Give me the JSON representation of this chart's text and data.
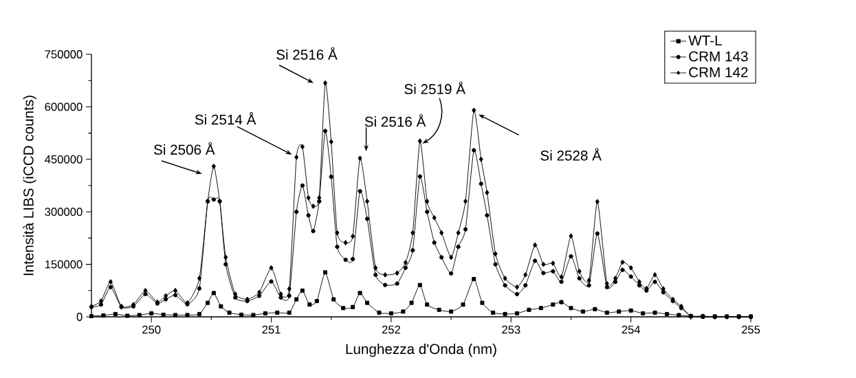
{
  "chart_data": {
    "type": "line",
    "xlabel": "Lunghezza d'Onda (nm)",
    "ylabel": "Intensità LIBS (iCCD counts)",
    "xlim": [
      249.5,
      255
    ],
    "xticks": [
      250,
      251,
      252,
      253,
      254,
      255
    ],
    "ylim": [
      0,
      750000
    ],
    "yticks": [
      0,
      150000,
      300000,
      450000,
      600000,
      750000
    ],
    "legend": "top right",
    "series": [
      {
        "name": "WT-L",
        "color": "#000000",
        "marker": "square",
        "x": [
          249.5,
          249.6,
          249.7,
          249.8,
          249.9,
          250.0,
          250.1,
          250.2,
          250.3,
          250.4,
          250.47,
          250.52,
          250.58,
          250.65,
          250.75,
          250.85,
          250.95,
          251.05,
          251.15,
          251.21,
          251.26,
          251.32,
          251.38,
          251.45,
          251.52,
          251.6,
          251.68,
          251.74,
          251.8,
          251.9,
          252.0,
          252.1,
          252.17,
          252.24,
          252.3,
          252.4,
          252.5,
          252.6,
          252.69,
          252.76,
          252.85,
          252.95,
          253.05,
          253.15,
          253.25,
          253.35,
          253.42,
          253.5,
          253.6,
          253.7,
          253.8,
          253.9,
          254.0,
          254.1,
          254.2,
          254.3,
          254.4,
          254.5,
          254.6,
          254.7,
          254.8,
          254.9,
          255.0
        ],
        "values": [
          2000,
          4000,
          8000,
          3000,
          5000,
          10000,
          6000,
          5000,
          5000,
          8000,
          40000,
          68000,
          30000,
          12000,
          6000,
          5000,
          10000,
          12000,
          12000,
          50000,
          75000,
          35000,
          45000,
          127000,
          50000,
          25000,
          28000,
          68000,
          40000,
          12000,
          10000,
          15000,
          40000,
          91000,
          35000,
          20000,
          15000,
          35000,
          108000,
          40000,
          12000,
          8000,
          10000,
          20000,
          25000,
          35000,
          42000,
          25000,
          15000,
          22000,
          12000,
          15000,
          18000,
          10000,
          12000,
          8000,
          5000,
          2000,
          1000,
          1000,
          1000,
          1000,
          1000
        ]
      },
      {
        "name": "CRM 143",
        "color": "#000000",
        "marker": "circle",
        "x": [
          249.5,
          249.58,
          249.66,
          249.75,
          249.85,
          249.95,
          250.05,
          250.12,
          250.2,
          250.3,
          250.4,
          250.47,
          250.52,
          250.57,
          250.62,
          250.7,
          250.8,
          250.9,
          251.0,
          251.08,
          251.15,
          251.21,
          251.26,
          251.31,
          251.35,
          251.4,
          251.45,
          251.5,
          251.55,
          251.62,
          251.68,
          251.74,
          251.8,
          251.87,
          251.95,
          252.05,
          252.12,
          252.18,
          252.24,
          252.3,
          252.36,
          252.42,
          252.5,
          252.56,
          252.62,
          252.69,
          252.75,
          252.8,
          252.87,
          252.95,
          253.05,
          253.12,
          253.2,
          253.27,
          253.35,
          253.42,
          253.5,
          253.57,
          253.65,
          253.72,
          253.8,
          253.87,
          253.93,
          254.0,
          254.07,
          254.13,
          254.2,
          254.27,
          254.35,
          254.42,
          254.5,
          254.6,
          254.7,
          254.8,
          254.9,
          255.0
        ],
        "values": [
          28000,
          35000,
          85000,
          28000,
          30000,
          65000,
          38000,
          50000,
          62000,
          36000,
          81000,
          330000,
          335000,
          330000,
          150000,
          55000,
          45000,
          60000,
          101000,
          55000,
          60000,
          300000,
          375000,
          290000,
          245000,
          330000,
          531000,
          400000,
          200000,
          163000,
          165000,
          359000,
          280000,
          120000,
          91000,
          95000,
          140000,
          190000,
          401000,
          300000,
          212000,
          170000,
          124000,
          200000,
          250000,
          476000,
          380000,
          290000,
          150000,
          90000,
          65000,
          90000,
          160000,
          125000,
          130000,
          100000,
          173000,
          110000,
          90000,
          238000,
          85000,
          100000,
          134000,
          115000,
          90000,
          75000,
          100000,
          70000,
          45000,
          25000,
          2000,
          0,
          0,
          0,
          0,
          0
        ]
      },
      {
        "name": "CRM 142",
        "color": "#000000",
        "marker": "diamond",
        "x": [
          249.5,
          249.58,
          249.66,
          249.75,
          249.85,
          249.95,
          250.05,
          250.12,
          250.2,
          250.3,
          250.4,
          250.47,
          250.52,
          250.57,
          250.62,
          250.7,
          250.8,
          250.9,
          251.0,
          251.08,
          251.15,
          251.21,
          251.26,
          251.31,
          251.35,
          251.4,
          251.45,
          251.5,
          251.55,
          251.62,
          251.68,
          251.74,
          251.8,
          251.87,
          251.95,
          252.05,
          252.12,
          252.18,
          252.24,
          252.3,
          252.36,
          252.42,
          252.5,
          252.56,
          252.62,
          252.69,
          252.75,
          252.8,
          252.87,
          252.95,
          253.05,
          253.12,
          253.2,
          253.27,
          253.35,
          253.42,
          253.5,
          253.57,
          253.65,
          253.72,
          253.8,
          253.87,
          253.93,
          254.0,
          254.07,
          254.13,
          254.2,
          254.27,
          254.35,
          254.42,
          254.5,
          254.6,
          254.7,
          254.8,
          254.9,
          255.0
        ],
        "values": [
          30000,
          45000,
          100000,
          30000,
          35000,
          75000,
          42000,
          60000,
          75000,
          40000,
          110000,
          330000,
          430000,
          330000,
          170000,
          65000,
          50000,
          70000,
          140000,
          65000,
          80000,
          456000,
          486000,
          340000,
          316000,
          340000,
          668000,
          500000,
          240000,
          212000,
          230000,
          453000,
          330000,
          140000,
          120000,
          125000,
          155000,
          240000,
          502000,
          330000,
          283000,
          240000,
          170000,
          240000,
          330000,
          590000,
          450000,
          355000,
          180000,
          110000,
          85000,
          120000,
          205000,
          150000,
          153000,
          114000,
          231000,
          130000,
          104000,
          329000,
          95000,
          110000,
          156000,
          140000,
          100000,
          81000,
          120000,
          80000,
          50000,
          30000,
          2000,
          2000,
          0,
          0,
          0,
          0
        ]
      }
    ],
    "annotations": [
      {
        "text": "Si 2506 Å",
        "x": 250.52,
        "y": 430000
      },
      "Si 2514 Å",
      {
        "text": "Si 2516 Å",
        "x": 251.45,
        "y": 668000
      },
      {
        "text": "Si 2516 Å",
        "x": 251.74,
        "y": 453000
      },
      {
        "text": "Si 2519 Å",
        "x": 252.26,
        "y": 495000
      },
      "Si 2528 Å"
    ]
  }
}
